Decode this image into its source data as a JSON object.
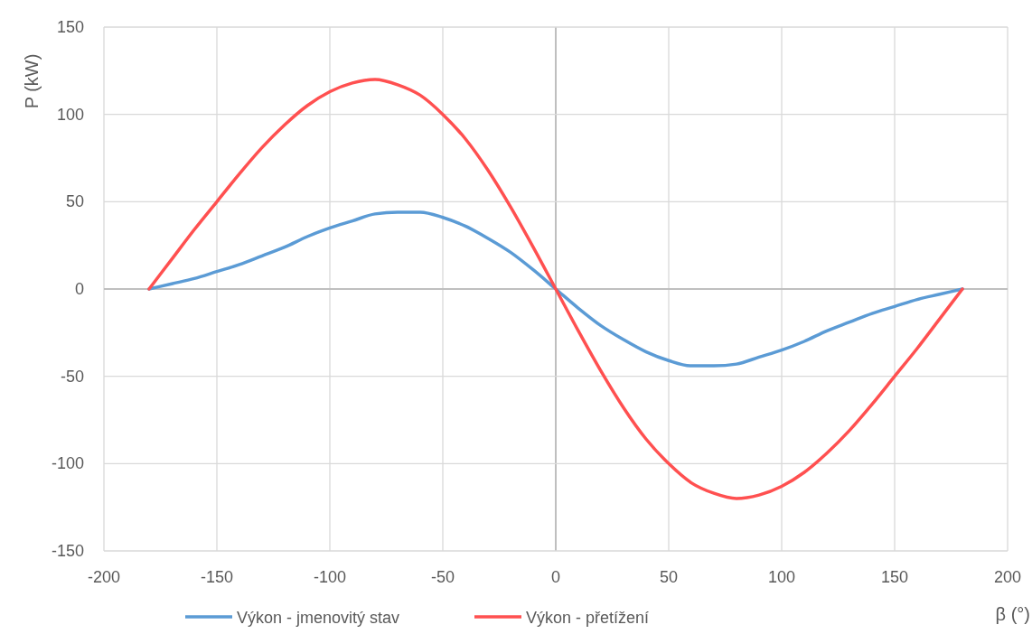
{
  "chart_data": {
    "type": "line",
    "xlabel": "β (°)",
    "ylabel": "P (kW)",
    "x": [
      -180,
      -170,
      -160,
      -150,
      -140,
      -130,
      -120,
      -110,
      -100,
      -90,
      -80,
      -70,
      -60,
      -50,
      -40,
      -30,
      -20,
      -10,
      0,
      10,
      20,
      30,
      40,
      50,
      60,
      70,
      80,
      90,
      100,
      110,
      120,
      130,
      140,
      150,
      160,
      170,
      180
    ],
    "series": [
      {
        "name": "Výkon - jmenovitý stav",
        "color": "#5b9bd5",
        "values": [
          0,
          3,
          6,
          10,
          14,
          19,
          24,
          30,
          35,
          39,
          43,
          44,
          44,
          41,
          36,
          29,
          21,
          11,
          0,
          -11,
          -21,
          -29,
          -36,
          -41,
          -44,
          -44,
          -43,
          -39,
          -35,
          -30,
          -24,
          -19,
          -14,
          -10,
          -6,
          -3,
          0
        ]
      },
      {
        "name": "Výkon - přetížení",
        "color": "#ff5050",
        "values": [
          0,
          17,
          34,
          50,
          66,
          81,
          94,
          105,
          113,
          118,
          120,
          117,
          111,
          100,
          86,
          68,
          47,
          24,
          0,
          -24,
          -47,
          -68,
          -86,
          -100,
          -111,
          -117,
          -120,
          -118,
          -113,
          -105,
          -94,
          -81,
          -66,
          -50,
          -34,
          -17,
          0
        ]
      }
    ],
    "xlim": [
      -200,
      200
    ],
    "xticks": [
      -200,
      -150,
      -100,
      -50,
      0,
      50,
      100,
      150,
      200
    ],
    "ylim": [
      -150,
      150
    ],
    "yticks": [
      -150,
      -100,
      -50,
      0,
      50,
      100,
      150
    ],
    "grid": true,
    "legend": "bottom",
    "marker": "none",
    "line_style": "solid"
  }
}
